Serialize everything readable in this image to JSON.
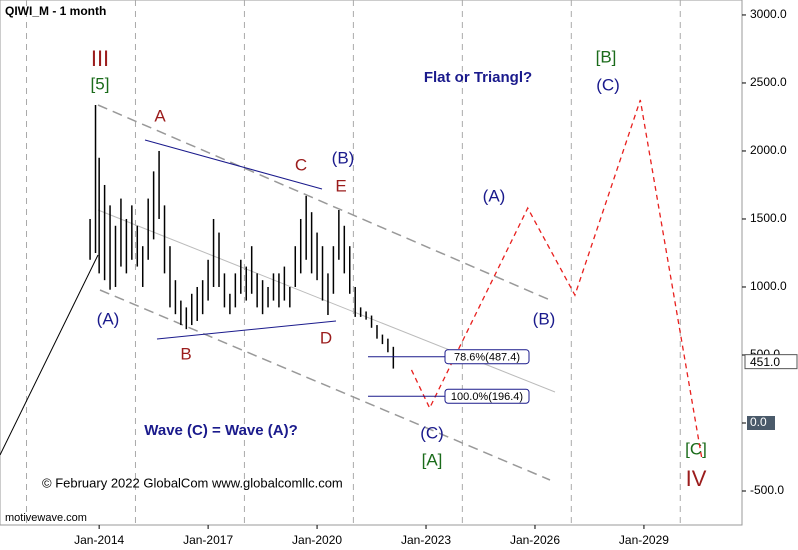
{
  "chart_data": {
    "type": "ohlc",
    "title": "QIWI_M - 1 month",
    "x": [
      2013.75,
      2013.9,
      2014.0,
      2014.15,
      2014.3,
      2014.45,
      2014.6,
      2014.75,
      2014.9,
      2015.05,
      2015.2,
      2015.35,
      2015.5,
      2015.65,
      2015.8,
      2015.95,
      2016.1,
      2016.25,
      2016.4,
      2016.55,
      2016.7,
      2016.85,
      2017.0,
      2017.15,
      2017.3,
      2017.45,
      2017.6,
      2017.75,
      2017.9,
      2018.05,
      2018.2,
      2018.35,
      2018.5,
      2018.65,
      2018.8,
      2018.95,
      2019.1,
      2019.25,
      2019.4,
      2019.55,
      2019.7,
      2019.85,
      2020.0,
      2020.15,
      2020.3,
      2020.45,
      2020.6,
      2020.75,
      2020.9,
      2021.05,
      2021.2,
      2021.35,
      2021.5,
      2021.65,
      2021.8,
      2021.95,
      2022.1
    ],
    "high": [
      1500,
      2338,
      1950,
      1750,
      1600,
      1450,
      1650,
      1500,
      1600,
      1450,
      1300,
      1650,
      1850,
      2000,
      1600,
      1300,
      1050,
      900,
      850,
      950,
      1000,
      1050,
      1200,
      1500,
      1400,
      1100,
      950,
      1100,
      1200,
      1150,
      1300,
      1100,
      1050,
      1000,
      1100,
      1100,
      1150,
      1000,
      1300,
      1500,
      1670,
      1550,
      1400,
      1300,
      1100,
      1300,
      1566,
      1450,
      1300,
      1000,
      850,
      820,
      790,
      720,
      650,
      620,
      560
    ],
    "low": [
      1200,
      1250,
      1100,
      1050,
      980,
      1000,
      1150,
      1100,
      1200,
      1150,
      1000,
      1200,
      1350,
      1500,
      1100,
      850,
      800,
      720,
      690,
      720,
      750,
      800,
      900,
      1000,
      1000,
      850,
      800,
      850,
      950,
      900,
      950,
      850,
      800,
      850,
      900,
      850,
      900,
      850,
      1000,
      1100,
      1200,
      1100,
      1050,
      900,
      794,
      950,
      1200,
      1100,
      950,
      780,
      780,
      760,
      700,
      620,
      580,
      520,
      400
    ],
    "color": "#000000",
    "forecast": {
      "color": "#e8201e",
      "x": [
        2022.6,
        2023.1,
        2025.8,
        2027.1,
        2028.9,
        2030.6
      ],
      "values": [
        390,
        110,
        1580,
        940,
        2375,
        -270
      ]
    },
    "xlim": [
      2011.27,
      2031.7
    ],
    "xticks": [
      {
        "value": 2014,
        "label": "Jan-2014"
      },
      {
        "value": 2017,
        "label": "Jan-2017"
      },
      {
        "value": 2020,
        "label": "Jan-2020"
      },
      {
        "value": 2023,
        "label": "Jan-2023"
      },
      {
        "value": 2026,
        "label": "Jan-2026"
      },
      {
        "value": 2029,
        "label": "Jan-2029"
      }
    ],
    "xgrid": [
      2012,
      2015,
      2018,
      2021,
      2024,
      2027,
      2030
    ],
    "ylim": [
      -750,
      3110
    ],
    "yticks": [
      {
        "value": 3000,
        "label": "3000.0"
      },
      {
        "value": 2500,
        "label": "2500.0"
      },
      {
        "value": 2000,
        "label": "2000.0"
      },
      {
        "value": 1500,
        "label": "1500.0"
      },
      {
        "value": 1000,
        "label": "1000.0"
      },
      {
        "value": 500,
        "label": "500.0"
      },
      {
        "value": 0,
        "label": "0.0"
      },
      {
        "value": -500,
        "label": "-500.0"
      }
    ],
    "last_price": {
      "value": 451,
      "label": "451.0"
    },
    "fib_levels": [
      {
        "value": 487.4,
        "label": "78.6%(487.4)"
      },
      {
        "value": 196.4,
        "label": "100.0%(196.4)"
      }
    ],
    "annotations": [
      "III",
      "[5]",
      "A",
      "B",
      "C",
      "D",
      "E",
      "(B)",
      "(A)",
      "(A)",
      "(B)",
      "(C)",
      "[A]",
      "[B]",
      "(C)",
      "[C]",
      "IV",
      "Flat or Triangl?",
      "Wave (C) = Wave (A)?",
      "© February 2022 GlobalCom www.globalcomllc.com",
      "motivewave.com"
    ]
  }
}
